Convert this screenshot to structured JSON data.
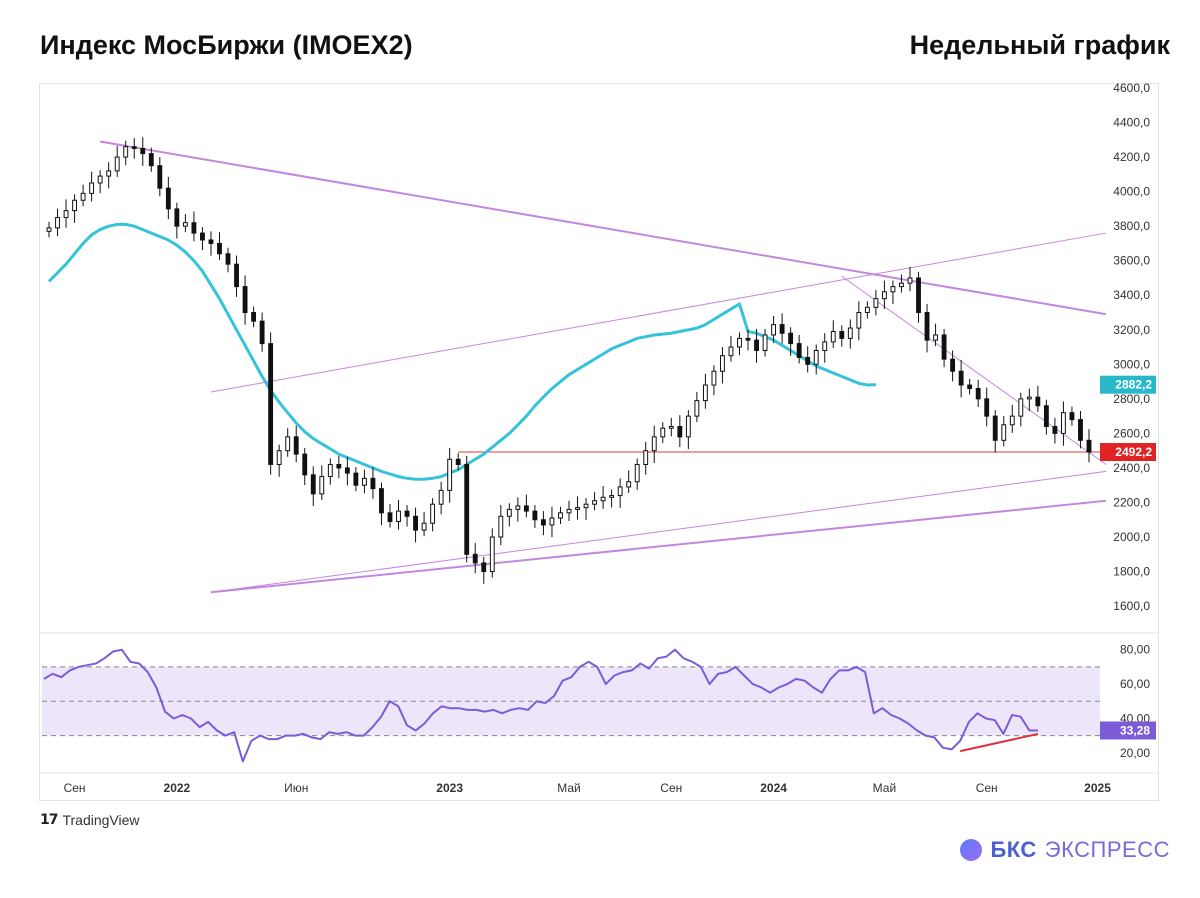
{
  "header": {
    "title": "Индекс МосБиржи (IMOEX2)",
    "subtitle": "Недельный график"
  },
  "footer": {
    "tradingview_label": "TradingView",
    "brand_primary": "БКС",
    "brand_secondary": "ЭКСПРЕСС"
  },
  "colors": {
    "ma": "#34c3d8",
    "trend": "#c586e0",
    "support": "#e06060",
    "price_label_bg": "#e02424",
    "ma_label_bg": "#27b9c9",
    "rsi_line": "#7b5bd6",
    "rsi_band": "#ede6fb",
    "rsi_label_bg": "#7b5bd6",
    "divergence": "#e0323a"
  },
  "chart_data": [
    {
      "type": "candlestick",
      "title": "Индекс МосБиржи (IMOEX2)",
      "timeframe": "Недельный график",
      "ylim": [
        1450,
        4600
      ],
      "y_ticks": [
        "4600,0",
        "4400,0",
        "4200,0",
        "4000,0",
        "3800,0",
        "3600,0",
        "3400,0",
        "3200,0",
        "3000,0",
        "2800,0",
        "2600,0",
        "2400,0",
        "2200,0",
        "2000,0",
        "1800,0",
        "1600,0"
      ],
      "y_tick_values": [
        4600,
        4400,
        4200,
        4000,
        3800,
        3600,
        3400,
        3200,
        3000,
        2800,
        2600,
        2400,
        2200,
        2000,
        1800,
        1600
      ],
      "x_labels": [
        "Сен",
        "2022",
        "Июн",
        "2023",
        "Май",
        "Сен",
        "2024",
        "Май",
        "Сен",
        "2025"
      ],
      "x_label_index": [
        3,
        15,
        29,
        47,
        61,
        73,
        85,
        98,
        110,
        123
      ],
      "closes": [
        3790,
        3850,
        3890,
        3950,
        3990,
        4050,
        4090,
        4120,
        4200,
        4260,
        4250,
        4220,
        4150,
        4020,
        3900,
        3800,
        3820,
        3760,
        3720,
        3700,
        3640,
        3580,
        3450,
        3300,
        3250,
        3120,
        2420,
        2500,
        2580,
        2480,
        2360,
        2250,
        2350,
        2420,
        2400,
        2370,
        2300,
        2340,
        2280,
        2140,
        2090,
        2150,
        2120,
        2040,
        2080,
        2190,
        2270,
        2450,
        2420,
        1900,
        1850,
        1800,
        2000,
        2120,
        2160,
        2180,
        2150,
        2100,
        2070,
        2110,
        2140,
        2160,
        2170,
        2190,
        2210,
        2230,
        2240,
        2290,
        2320,
        2420,
        2500,
        2580,
        2630,
        2640,
        2580,
        2700,
        2790,
        2880,
        2960,
        3050,
        3100,
        3150,
        3140,
        3080,
        3170,
        3230,
        3180,
        3120,
        3040,
        3000,
        3080,
        3130,
        3190,
        3150,
        3210,
        3300,
        3330,
        3380,
        3420,
        3450,
        3470,
        3500,
        3300,
        3140,
        3170,
        3030,
        2960,
        2880,
        2860,
        2800,
        2700,
        2560,
        2650,
        2700,
        2800,
        2810,
        2760,
        2640,
        2600,
        2720,
        2680,
        2560,
        2492
      ],
      "support": {
        "value": 2492.2,
        "label": "2492,2",
        "from_index": 48
      },
      "ma": {
        "label": "2882,2",
        "values": [
          3480,
          3530,
          3580,
          3640,
          3700,
          3750,
          3780,
          3800,
          3810,
          3810,
          3800,
          3780,
          3760,
          3740,
          3720,
          3690,
          3650,
          3600,
          3540,
          3460,
          3380,
          3290,
          3200,
          3110,
          3020,
          2930,
          2850,
          2780,
          2720,
          2660,
          2610,
          2570,
          2540,
          2510,
          2480,
          2460,
          2440,
          2420,
          2400,
          2380,
          2365,
          2350,
          2340,
          2335,
          2335,
          2340,
          2350,
          2370,
          2390,
          2420,
          2450,
          2480,
          2520,
          2560,
          2600,
          2650,
          2700,
          2760,
          2810,
          2860,
          2900,
          2940,
          2970,
          3000,
          3030,
          3060,
          3090,
          3110,
          3130,
          3150,
          3160,
          3170,
          3175,
          3180,
          3190,
          3200,
          3210,
          3230,
          3260,
          3290,
          3320,
          3350,
          3190,
          3180,
          3160,
          3140,
          3110,
          3080,
          3050,
          3020,
          2990,
          2970,
          2950,
          2930,
          2910,
          2890,
          2880,
          2882
        ]
      },
      "trendlines": [
        {
          "name": "upper",
          "from": [
            6,
            4290
          ],
          "to": [
            124,
            3290
          ]
        },
        {
          "name": "channel_upper",
          "from": [
            19,
            2840
          ],
          "to": [
            124,
            3760
          ]
        },
        {
          "name": "channel_lower_inner",
          "from": [
            19,
            1680
          ],
          "to": [
            124,
            2380
          ]
        },
        {
          "name": "support_long",
          "from": [
            19,
            1680
          ],
          "to": [
            124,
            2210
          ]
        },
        {
          "name": "steep_down",
          "from": [
            93,
            3510
          ],
          "to": [
            124,
            2420
          ]
        }
      ]
    },
    {
      "type": "line",
      "title": "",
      "ylim": [
        10,
        88
      ],
      "y_ticks": [
        "80,00",
        "60,00",
        "40,00",
        "20,00"
      ],
      "y_tick_values": [
        80,
        60,
        40,
        20
      ],
      "band": [
        30,
        70
      ],
      "midline": 50,
      "current_label": "33,28",
      "values": [
        63,
        66,
        64,
        68,
        70,
        71,
        72,
        75,
        79,
        80,
        73,
        72,
        67,
        58,
        44,
        40,
        42,
        40,
        35,
        38,
        33,
        30,
        32,
        15,
        27,
        30,
        28,
        28,
        30,
        30,
        31,
        29,
        28,
        32,
        31,
        32,
        30,
        30,
        35,
        41,
        50,
        47,
        36,
        33,
        37,
        43,
        47,
        46,
        46,
        45,
        45,
        44,
        45,
        43,
        45,
        46,
        45,
        50,
        49,
        53,
        62,
        64,
        70,
        73,
        70,
        60,
        65,
        67,
        68,
        72,
        69,
        75,
        76,
        80,
        75,
        73,
        70,
        60,
        66,
        67,
        70,
        65,
        60,
        58,
        55,
        58,
        60,
        63,
        62,
        58,
        55,
        63,
        68,
        68,
        70,
        67,
        43,
        46,
        42,
        40,
        37,
        33,
        30,
        29,
        23,
        22,
        27,
        38,
        43,
        40,
        39,
        31,
        42,
        41,
        33,
        33
      ],
      "divergence": {
        "from": [
          106,
          21
        ],
        "to": [
          115,
          31
        ]
      }
    }
  ]
}
